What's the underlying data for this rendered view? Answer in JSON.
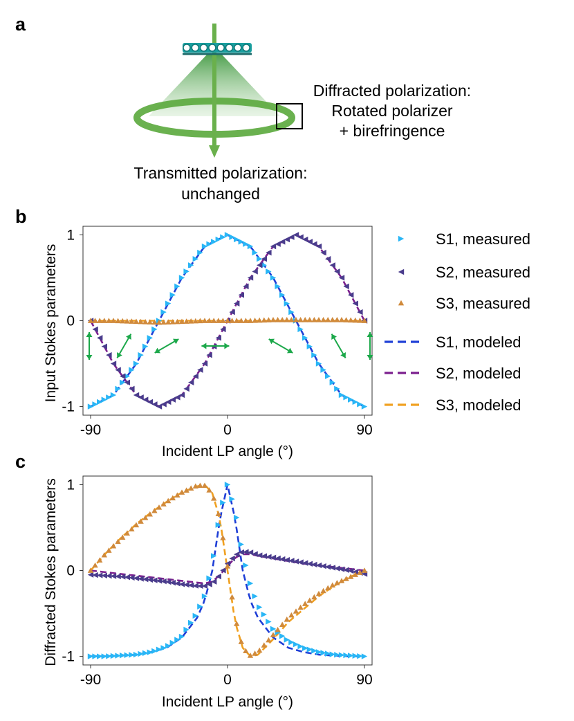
{
  "panels": {
    "a": "a",
    "b": "b",
    "c": "c"
  },
  "schematic": {
    "diffracted_line1": "Diffracted polarization:",
    "diffracted_line2": "Rotated polarizer",
    "diffracted_line3": "+ birefringence",
    "transmitted_line1": "Transmitted polarization:",
    "transmitted_line2": "unchanged",
    "colors": {
      "beam": "#6ab04c",
      "ring": "#5aa83c",
      "grating": "#1aa0a0"
    }
  },
  "legend": [
    {
      "label": "S1, measured",
      "marker": "triangle-right",
      "color": "#29b6f6"
    },
    {
      "label": "S2, measured",
      "marker": "triangle-left",
      "color": "#4a3c8c"
    },
    {
      "label": "S3, measured",
      "marker": "triangle-up",
      "color": "#d08a3c"
    },
    {
      "label": "S1, modeled",
      "line": "dashed",
      "color": "#1f3fd6"
    },
    {
      "label": "S2, modeled",
      "line": "dashed",
      "color": "#7b1f8e"
    },
    {
      "label": "S3, modeled",
      "line": "dashed",
      "color": "#f0a020"
    }
  ],
  "chart_data": [
    {
      "id": "b",
      "type": "line",
      "xlabel": "Incident LP angle (°)",
      "ylabel": "Input Stokes parameters",
      "xlim": [
        -95,
        95
      ],
      "ylim": [
        -1.1,
        1.1
      ],
      "xticks": [
        -90,
        0,
        90
      ],
      "yticks": [
        -1,
        0,
        1
      ],
      "x": [
        -90,
        -75,
        -60,
        -45,
        -30,
        -15,
        0,
        15,
        30,
        45,
        60,
        75,
        90
      ],
      "series": [
        {
          "name": "S1, measured",
          "values": [
            -1.0,
            -0.866,
            -0.5,
            0.0,
            0.5,
            0.866,
            1.0,
            0.866,
            0.5,
            0.0,
            -0.5,
            -0.866,
            -1.0
          ]
        },
        {
          "name": "S2, measured",
          "values": [
            0.0,
            -0.5,
            -0.866,
            -1.0,
            -0.866,
            -0.5,
            0.0,
            0.5,
            0.866,
            1.0,
            0.866,
            0.5,
            0.0
          ]
        },
        {
          "name": "S3, measured",
          "values": [
            0.0,
            0.0,
            -0.01,
            -0.02,
            -0.01,
            0.0,
            0.0,
            0.0,
            0.01,
            0.01,
            0.01,
            0.01,
            0.0
          ]
        },
        {
          "name": "S1, modeled",
          "values": [
            -1.0,
            -0.866,
            -0.5,
            0.0,
            0.5,
            0.866,
            1.0,
            0.866,
            0.5,
            0.0,
            -0.5,
            -0.866,
            -1.0
          ]
        },
        {
          "name": "S2, modeled",
          "values": [
            0.0,
            -0.5,
            -0.866,
            -1.0,
            -0.866,
            -0.5,
            0.0,
            0.5,
            0.866,
            1.0,
            0.866,
            0.5,
            0.0
          ]
        },
        {
          "name": "S3, modeled",
          "values": [
            0.0,
            0.0,
            0.0,
            0.0,
            0.0,
            0.0,
            0.0,
            0.0,
            0.0,
            0.0,
            0.0,
            0.0,
            0.0
          ]
        }
      ],
      "polarization_arrows_deg": [
        90,
        60,
        30,
        0,
        -30,
        -60,
        -90
      ]
    },
    {
      "id": "c",
      "type": "line",
      "xlabel": "Incident LP angle (°)",
      "ylabel": "Diffracted Stokes parameters",
      "xlim": [
        -95,
        95
      ],
      "ylim": [
        -1.1,
        1.1
      ],
      "xticks": [
        -90,
        0,
        90
      ],
      "yticks": [
        -1,
        0,
        1
      ],
      "x": [
        -90,
        -80,
        -70,
        -60,
        -50,
        -40,
        -30,
        -20,
        -15,
        -10,
        -5,
        0,
        5,
        10,
        15,
        20,
        30,
        40,
        50,
        60,
        70,
        80,
        90
      ],
      "series": [
        {
          "name": "S1, measured",
          "values": [
            -1.0,
            -1.0,
            -0.99,
            -0.98,
            -0.95,
            -0.89,
            -0.77,
            -0.5,
            -0.3,
            0.05,
            0.65,
            1.0,
            0.72,
            0.2,
            -0.15,
            -0.4,
            -0.68,
            -0.82,
            -0.9,
            -0.95,
            -0.98,
            -0.99,
            -1.0
          ]
        },
        {
          "name": "S2, measured",
          "values": [
            -0.05,
            -0.06,
            -0.07,
            -0.09,
            -0.11,
            -0.13,
            -0.16,
            -0.18,
            -0.18,
            -0.15,
            -0.05,
            0.08,
            0.18,
            0.22,
            0.21,
            0.18,
            0.15,
            0.12,
            0.09,
            0.06,
            0.03,
            0.0,
            -0.04
          ]
        },
        {
          "name": "S3, measured",
          "values": [
            0.0,
            0.2,
            0.37,
            0.53,
            0.67,
            0.8,
            0.91,
            0.99,
            0.99,
            0.9,
            0.6,
            0.05,
            -0.55,
            -0.9,
            -0.99,
            -0.95,
            -0.75,
            -0.55,
            -0.4,
            -0.27,
            -0.16,
            -0.08,
            0.0
          ]
        },
        {
          "name": "S1, modeled",
          "values": [
            -1.0,
            -1.0,
            -0.99,
            -0.98,
            -0.95,
            -0.9,
            -0.78,
            -0.55,
            -0.35,
            0.0,
            0.6,
            1.0,
            0.6,
            0.0,
            -0.35,
            -0.55,
            -0.78,
            -0.9,
            -0.95,
            -0.98,
            -0.99,
            -1.0,
            -1.0
          ]
        },
        {
          "name": "S2, modeled",
          "values": [
            0.0,
            -0.02,
            -0.04,
            -0.06,
            -0.08,
            -0.1,
            -0.12,
            -0.14,
            -0.15,
            -0.13,
            -0.05,
            0.05,
            0.15,
            0.19,
            0.19,
            0.17,
            0.14,
            0.11,
            0.08,
            0.06,
            0.04,
            0.02,
            0.0
          ]
        },
        {
          "name": "S3, modeled",
          "values": [
            0.0,
            0.2,
            0.38,
            0.54,
            0.68,
            0.8,
            0.91,
            0.98,
            1.0,
            0.9,
            0.6,
            0.0,
            -0.6,
            -0.9,
            -1.0,
            -0.98,
            -0.8,
            -0.6,
            -0.45,
            -0.3,
            -0.18,
            -0.08,
            0.0
          ]
        }
      ]
    }
  ]
}
